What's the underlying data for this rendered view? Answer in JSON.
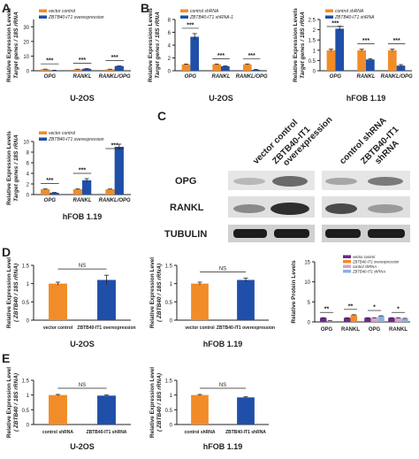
{
  "colors": {
    "orange": "#f28c28",
    "blue": "#1f4fa8",
    "purple": "#6b2a8a",
    "pink": "#d9a3c7",
    "lightblue": "#8fb0e0",
    "red": "#e8322c",
    "ink": "#222222"
  },
  "panel_labels": {
    "A": "A",
    "B": "B",
    "C": "C",
    "D": "D",
    "E": "E"
  },
  "ylabels": {
    "target_genes": [
      "Relative Expression Levels",
      "Target genes / 18S rRNA"
    ],
    "zbtb40": [
      "Relative Expression Level",
      "( ZBTB40 / 18S rRNA)"
    ],
    "protein": [
      "Relative Protein Levels"
    ]
  },
  "blot": {
    "col_labels": [
      "vector control",
      "ZBTB40-IT1",
      "overexpression",
      "control shRNA",
      "ZBTB40-IT1",
      "shRNA"
    ],
    "row_labels": [
      "OPG",
      "RANKL",
      "TUBULIN"
    ]
  },
  "chart_data": [
    {
      "id": "A1",
      "type": "bar",
      "title": "U-2OS",
      "categories": [
        "OPG",
        "RANKL",
        "RANKL/OPG"
      ],
      "ylim": [
        0,
        35
      ],
      "ticks": [
        0,
        10,
        20,
        30
      ],
      "series": [
        {
          "name": "vector control",
          "values": [
            1.0,
            1.0,
            1.0
          ],
          "err": [
            0.08,
            0.06,
            0.06
          ]
        },
        {
          "name": "ZBTB40-IT1 overexpression",
          "values": [
            0.3,
            1.35,
            3.2
          ],
          "err": [
            0.03,
            0.15,
            0.12
          ]
        }
      ],
      "sig": [
        "***",
        "***",
        "***"
      ]
    },
    {
      "id": "A2",
      "type": "bar",
      "title": "hFOB 1.19",
      "categories": [
        "OPG",
        "RANKL",
        "RANKL/OPG"
      ],
      "ylim": [
        0,
        10
      ],
      "ticks": [
        0,
        2,
        4,
        6,
        8,
        10
      ],
      "series": [
        {
          "name": "vector control",
          "values": [
            1.0,
            1.0,
            1.0
          ],
          "err": [
            0.06,
            0.06,
            0.05
          ]
        },
        {
          "name": "ZBTB40-IT1 overexpression",
          "values": [
            0.35,
            2.7,
            9.0
          ],
          "err": [
            0.05,
            0.3,
            0.5
          ]
        }
      ],
      "sig": [
        "***",
        "***",
        "***"
      ]
    },
    {
      "id": "B1",
      "type": "bar",
      "title": "U-2OS",
      "categories": [
        "OPG",
        "RANKL",
        "RANKL/OPG"
      ],
      "ylim": [
        0,
        8
      ],
      "ticks": [
        0,
        2,
        4,
        6,
        8
      ],
      "series": [
        {
          "name": "control shRNA",
          "values": [
            1.0,
            1.0,
            1.0
          ],
          "err": [
            0.05,
            0.05,
            0.06
          ]
        },
        {
          "name": "ZBTB40-IT1 shRNA-1",
          "values": [
            5.3,
            0.7,
            0.15
          ],
          "err": [
            0.5,
            0.05,
            0.05
          ]
        }
      ],
      "sig": [
        "***",
        "***",
        "***"
      ]
    },
    {
      "id": "B2",
      "type": "bar",
      "title": "hFOB 1.19",
      "categories": [
        "OPG",
        "RANKL",
        "RANKL/OPG"
      ],
      "ylim": [
        0,
        2.5
      ],
      "ticks": [
        0,
        0.5,
        1.0,
        1.5,
        2.0,
        2.5
      ],
      "series": [
        {
          "name": "control shRNA",
          "values": [
            1.0,
            1.0,
            1.0
          ],
          "err": [
            0.05,
            0.05,
            0.05
          ]
        },
        {
          "name": "ZBTB40-IT1 shRNA",
          "values": [
            2.05,
            0.55,
            0.25
          ],
          "err": [
            0.12,
            0.04,
            0.05
          ]
        }
      ],
      "sig": [
        "***",
        "***",
        "***"
      ]
    },
    {
      "id": "D1",
      "type": "bar",
      "title": "U-2OS",
      "categories": [
        "vector control",
        "ZBTB40-IT1 overexpression"
      ],
      "ylim": [
        0,
        1.5
      ],
      "ticks": [
        0,
        0.5,
        1.0,
        1.5
      ],
      "values": [
        1.0,
        1.1
      ],
      "err": [
        0.04,
        0.13
      ],
      "sig": [
        "NS"
      ]
    },
    {
      "id": "D2",
      "type": "bar",
      "title": "hFOB 1.19",
      "categories": [
        "vector control",
        "ZBTB40-IT1 overexpression"
      ],
      "ylim": [
        0,
        1.5
      ],
      "ticks": [
        0,
        0.5,
        1.0,
        1.5
      ],
      "values": [
        1.0,
        1.1
      ],
      "err": [
        0.04,
        0.05
      ],
      "sig": [
        "NS"
      ]
    },
    {
      "id": "D3",
      "type": "bar",
      "title": "",
      "categories": [
        "OPG",
        "RANKL",
        "OPG",
        "RANKL"
      ],
      "ylim": [
        0,
        15
      ],
      "ticks": [
        0,
        5,
        10,
        15
      ],
      "series": [
        {
          "name": "vector control",
          "values": [
            1.0,
            1.0,
            1.0,
            1.0
          ],
          "err": [
            0.05,
            0.05,
            0.05,
            0.05
          ]
        },
        {
          "name": "ZBTB40-IT1 overexpression",
          "values": [
            0.25,
            1.7,
            0,
            0
          ],
          "err": [
            0.05,
            0.1,
            0,
            0
          ]
        },
        {
          "name": "control shRNA",
          "values": [
            0,
            0,
            1.0,
            1.0
          ],
          "err": [
            0,
            0,
            0.05,
            0.05
          ]
        },
        {
          "name": "ZBTB40-IT1 shRNA",
          "values": [
            0,
            0,
            1.45,
            0.82
          ],
          "err": [
            0,
            0,
            0.08,
            0.08
          ]
        }
      ],
      "sig": [
        "**",
        "**",
        "*",
        "*"
      ]
    },
    {
      "id": "E1",
      "type": "bar",
      "title": "U-2OS",
      "categories": [
        "control shRNA",
        "ZBTB40-IT1 shRNA"
      ],
      "ylim": [
        0,
        1.5
      ],
      "ticks": [
        0,
        0.5,
        1.0,
        1.5
      ],
      "values": [
        1.0,
        0.98
      ],
      "err": [
        0.02,
        0.02
      ],
      "sig": [
        "NS"
      ]
    },
    {
      "id": "E2",
      "type": "bar",
      "title": "hFOB 1.19",
      "categories": [
        "control shRNA",
        "ZBTB40-IT1 shRNA"
      ],
      "ylim": [
        0,
        1.5
      ],
      "ticks": [
        0,
        0.5,
        1.0,
        1.5
      ],
      "values": [
        1.0,
        0.92
      ],
      "err": [
        0.02,
        0.02
      ],
      "sig": [
        "NS"
      ]
    }
  ]
}
